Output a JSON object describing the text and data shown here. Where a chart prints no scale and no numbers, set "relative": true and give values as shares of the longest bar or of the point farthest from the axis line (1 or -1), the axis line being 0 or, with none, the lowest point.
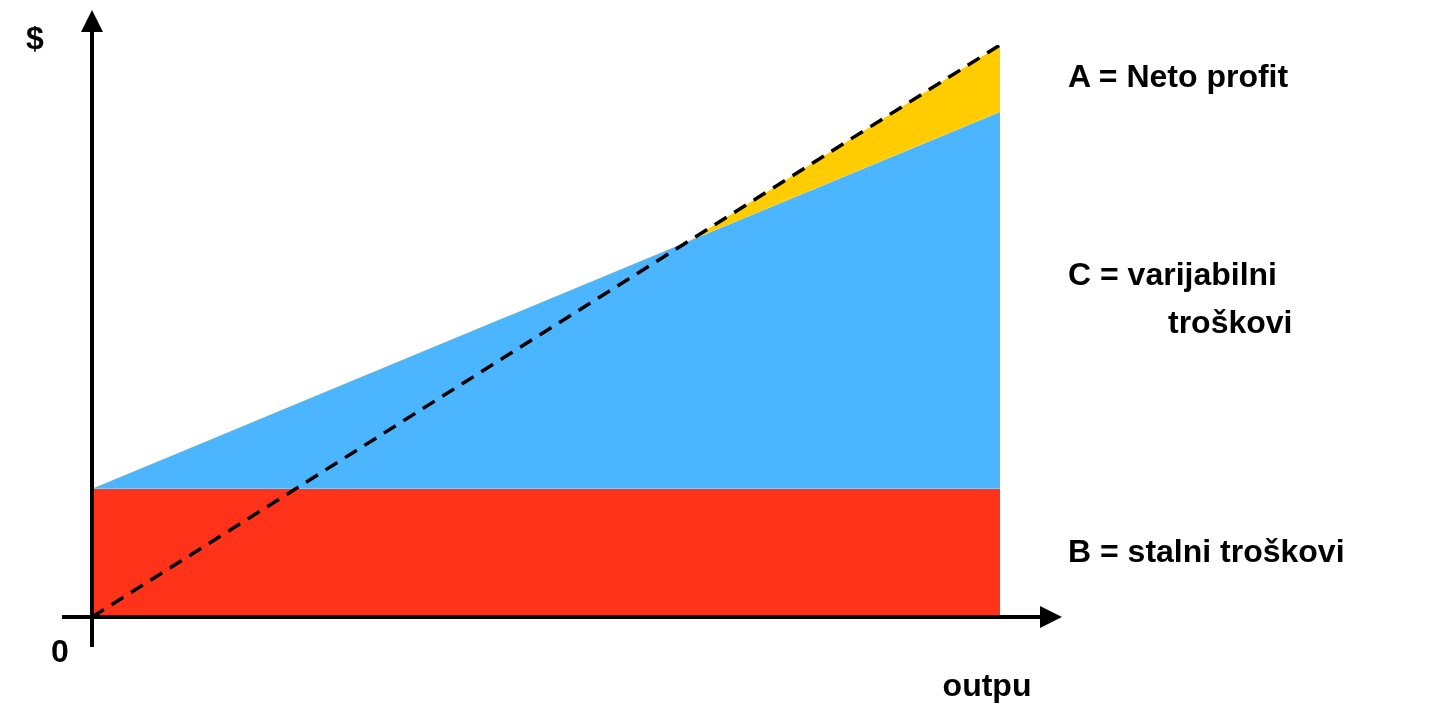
{
  "chart_data": {
    "type": "area",
    "relative": true,
    "categories": [
      null,
      null
    ],
    "xlabel": "outpu",
    "ylabel": "$",
    "annotations": [
      "0"
    ],
    "series": [
      {
        "name": "B = stalni troškovi",
        "color": "#ff3319",
        "values": [
          0.224,
          0.224
        ]
      },
      {
        "name": "C = varijabilni troškovi",
        "color": "#4cb5ff",
        "values": [
          0.224,
          0.883
        ]
      },
      {
        "name": "A = Neto profit",
        "color": "#ffcc00",
        "values": [
          0,
          1
        ],
        "line_style": "dashed"
      }
    ]
  }
}
